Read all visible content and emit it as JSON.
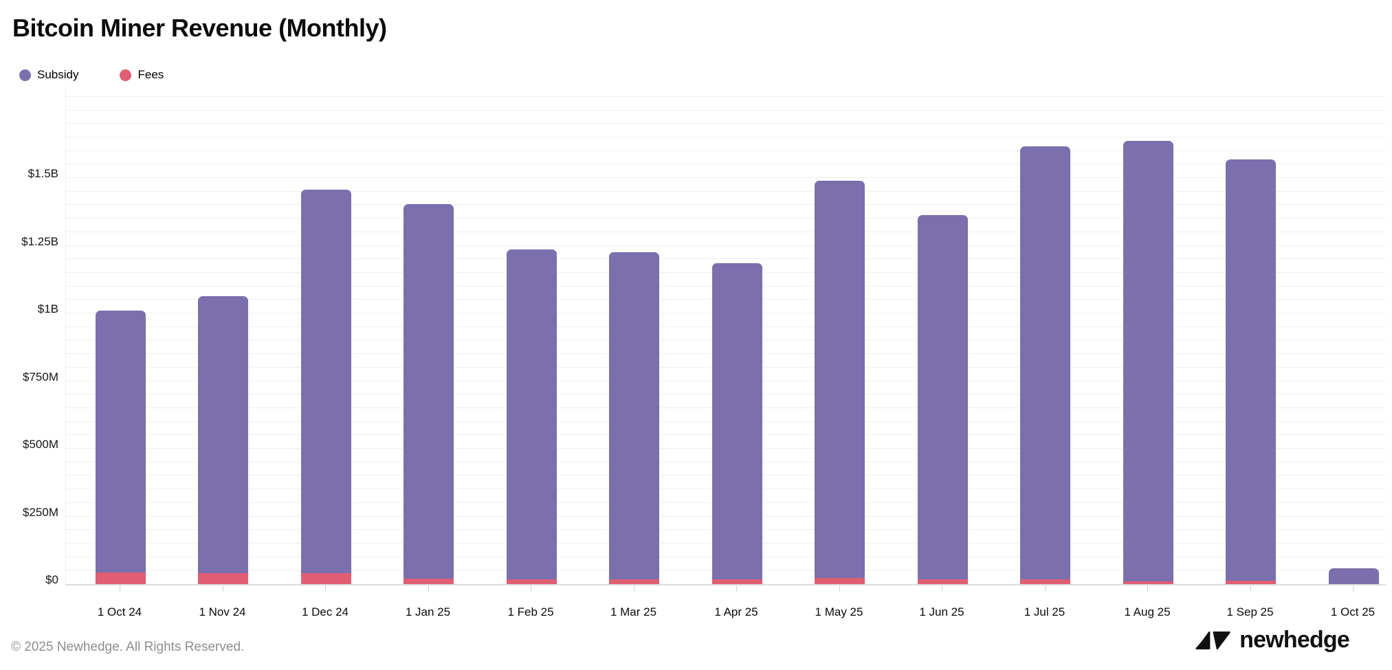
{
  "header": {
    "title": "Bitcoin Miner Revenue (Monthly)"
  },
  "legend": [
    {
      "label": "Subsidy",
      "color": "#7B6FAD"
    },
    {
      "label": "Fees",
      "color": "#E05E72"
    }
  ],
  "chart_data": {
    "type": "bar",
    "stacked": true,
    "title": "Bitcoin Miner Revenue (Monthly)",
    "categories": [
      "1 Oct 24",
      "1 Nov 24",
      "1 Dec 24",
      "1 Jan 25",
      "1 Feb 25",
      "1 Mar 25",
      "1 Apr 25",
      "1 May 25",
      "1 Jun 25",
      "1 Jul 25",
      "1 Aug 25",
      "1 Sep 25",
      "1 Oct 25"
    ],
    "series": [
      {
        "name": "Subsidy",
        "color": "#7B6FAD",
        "values_musd": [
          968,
          1022,
          1417,
          1382,
          1216,
          1209,
          1168,
          1466,
          1344,
          1600,
          1626,
          1557,
          58
        ]
      },
      {
        "name": "Fees",
        "color": "#E05E72",
        "values_musd": [
          42,
          41,
          40,
          21,
          19,
          18,
          17,
          23,
          19,
          17,
          11,
          12,
          0
        ]
      }
    ],
    "totals_musd": [
      1010,
      1063,
      1457,
      1403,
      1235,
      1227,
      1185,
      1489,
      1363,
      1617,
      1637,
      1569,
      58
    ],
    "y_axis": {
      "unit": "USD",
      "tick_labels": [
        "$0",
        "$250M",
        "$500M",
        "$750M",
        "$1B",
        "$1.25B",
        "$1.5B"
      ],
      "tick_interval_musd": 250,
      "minor_grid_interval_musd": 50,
      "max_musd": 1800
    },
    "legend_position": "top-left",
    "grid": true
  },
  "footer": {
    "copyright": "© 2025 Newhedge. All Rights Reserved.",
    "brand": "newhedge"
  }
}
